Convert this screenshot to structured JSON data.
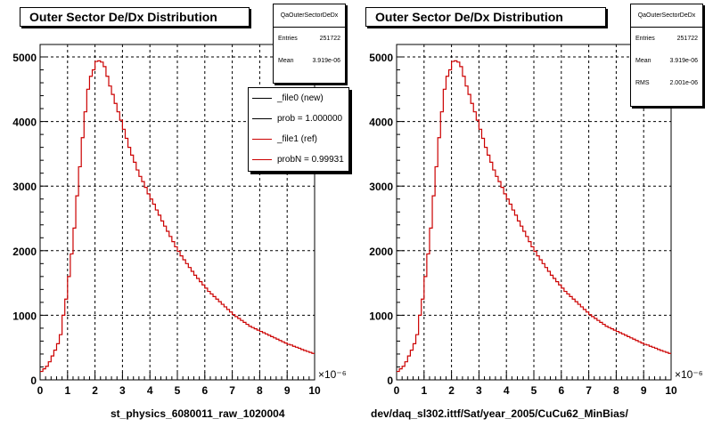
{
  "chart_data": [
    {
      "type": "histogram",
      "title": "Outer Sector De/Dx Distribution",
      "xlabel": "st_physics_6080011_raw_1020004",
      "x_exponent_label": "×10⁻⁶",
      "xlim": [
        0,
        10
      ],
      "ylim": [
        0,
        5000
      ],
      "x_ticks": [
        "0",
        "1",
        "2",
        "3",
        "4",
        "5",
        "6",
        "7",
        "8",
        "9",
        "10"
      ],
      "y_ticks": [
        "0",
        "1000",
        "2000",
        "3000",
        "4000",
        "5000"
      ],
      "grid": true,
      "stats": {
        "header": "QaOuterSectorDeDx",
        "rows": [
          {
            "label": "Entries",
            "value": "251722"
          },
          {
            "label": "Mean",
            "value": "3.919e-06"
          }
        ]
      },
      "legend": {
        "placement": "top-right",
        "entries": [
          {
            "label": "_file0 (new)",
            "color": "#000000"
          },
          {
            "label": "prob = 1.000000",
            "color": "#000000"
          },
          {
            "label": "_file1 (ref)",
            "color": "#cc0000"
          },
          {
            "label": "probN = 0.99931",
            "color": "#cc0000"
          }
        ]
      },
      "series": [
        {
          "color": "#cc0000",
          "x": [
            0.0,
            0.1,
            0.2,
            0.3,
            0.4,
            0.5,
            0.6,
            0.7,
            0.8,
            0.9,
            1.0,
            1.1,
            1.2,
            1.3,
            1.4,
            1.5,
            1.6,
            1.7,
            1.8,
            1.9,
            2.0,
            2.1,
            2.2,
            2.3,
            2.4,
            2.5,
            2.6,
            2.7,
            2.8,
            2.9,
            3.0,
            3.1,
            3.2,
            3.3,
            3.4,
            3.5,
            3.6,
            3.7,
            3.8,
            3.9,
            4.0,
            4.1,
            4.2,
            4.3,
            4.4,
            4.5,
            4.6,
            4.7,
            4.8,
            4.9,
            5.0,
            5.1,
            5.2,
            5.3,
            5.4,
            5.5,
            5.6,
            5.7,
            5.8,
            5.9,
            6.0,
            6.1,
            6.2,
            6.3,
            6.4,
            6.5,
            6.6,
            6.7,
            6.8,
            6.9,
            7.0,
            7.1,
            7.2,
            7.3,
            7.4,
            7.5,
            7.6,
            7.7,
            7.8,
            7.9,
            8.0,
            8.1,
            8.2,
            8.3,
            8.4,
            8.5,
            8.6,
            8.7,
            8.8,
            8.9,
            9.0,
            9.1,
            9.2,
            9.3,
            9.4,
            9.5,
            9.6,
            9.7,
            9.8,
            9.9
          ],
          "values": [
            130,
            170,
            210,
            280,
            370,
            460,
            560,
            700,
            1000,
            1250,
            1600,
            1950,
            2350,
            2850,
            3300,
            3750,
            4150,
            4500,
            4700,
            4800,
            4930,
            4940,
            4920,
            4850,
            4700,
            4550,
            4420,
            4280,
            4150,
            4020,
            3880,
            3740,
            3600,
            3480,
            3370,
            3250,
            3150,
            3070,
            2980,
            2880,
            2800,
            2720,
            2630,
            2550,
            2460,
            2380,
            2300,
            2220,
            2140,
            2060,
            1990,
            1920,
            1860,
            1800,
            1740,
            1680,
            1620,
            1570,
            1520,
            1470,
            1420,
            1370,
            1330,
            1290,
            1250,
            1210,
            1170,
            1130,
            1090,
            1050,
            1010,
            980,
            950,
            920,
            890,
            860,
            830,
            810,
            790,
            770,
            750,
            730,
            710,
            690,
            670,
            650,
            630,
            610,
            590,
            570,
            550,
            540,
            520,
            505,
            490,
            470,
            455,
            440,
            425,
            410
          ]
        }
      ]
    },
    {
      "type": "histogram",
      "title": "Outer Sector De/Dx Distribution",
      "xlabel": "dev/daq_sl302.ittf/Sat/year_2005/CuCu62_MinBias/",
      "x_exponent_label": "×10⁻⁶",
      "xlim": [
        0,
        10
      ],
      "ylim": [
        0,
        5000
      ],
      "x_ticks": [
        "0",
        "1",
        "2",
        "3",
        "4",
        "5",
        "6",
        "7",
        "8",
        "9",
        "10"
      ],
      "y_ticks": [
        "0",
        "1000",
        "2000",
        "3000",
        "4000",
        "5000"
      ],
      "grid": true,
      "stats": {
        "header": "QaOuterSectorDeDx",
        "rows": [
          {
            "label": "Entries",
            "value": "251722"
          },
          {
            "label": "Mean",
            "value": "3.919e-06"
          },
          {
            "label": "RMS",
            "value": "2.001e-06"
          }
        ]
      },
      "series": [
        {
          "color": "#cc0000",
          "x": [
            0.0,
            0.1,
            0.2,
            0.3,
            0.4,
            0.5,
            0.6,
            0.7,
            0.8,
            0.9,
            1.0,
            1.1,
            1.2,
            1.3,
            1.4,
            1.5,
            1.6,
            1.7,
            1.8,
            1.9,
            2.0,
            2.1,
            2.2,
            2.3,
            2.4,
            2.5,
            2.6,
            2.7,
            2.8,
            2.9,
            3.0,
            3.1,
            3.2,
            3.3,
            3.4,
            3.5,
            3.6,
            3.7,
            3.8,
            3.9,
            4.0,
            4.1,
            4.2,
            4.3,
            4.4,
            4.5,
            4.6,
            4.7,
            4.8,
            4.9,
            5.0,
            5.1,
            5.2,
            5.3,
            5.4,
            5.5,
            5.6,
            5.7,
            5.8,
            5.9,
            6.0,
            6.1,
            6.2,
            6.3,
            6.4,
            6.5,
            6.6,
            6.7,
            6.8,
            6.9,
            7.0,
            7.1,
            7.2,
            7.3,
            7.4,
            7.5,
            7.6,
            7.7,
            7.8,
            7.9,
            8.0,
            8.1,
            8.2,
            8.3,
            8.4,
            8.5,
            8.6,
            8.7,
            8.8,
            8.9,
            9.0,
            9.1,
            9.2,
            9.3,
            9.4,
            9.5,
            9.6,
            9.7,
            9.8,
            9.9
          ],
          "values": [
            130,
            170,
            210,
            280,
            370,
            460,
            560,
            700,
            1000,
            1250,
            1600,
            1950,
            2350,
            2850,
            3300,
            3750,
            4150,
            4500,
            4700,
            4800,
            4930,
            4940,
            4920,
            4850,
            4700,
            4550,
            4420,
            4280,
            4150,
            4020,
            3880,
            3740,
            3600,
            3480,
            3370,
            3250,
            3150,
            3070,
            2980,
            2880,
            2800,
            2720,
            2630,
            2550,
            2460,
            2380,
            2300,
            2220,
            2140,
            2060,
            1990,
            1920,
            1860,
            1800,
            1740,
            1680,
            1620,
            1570,
            1520,
            1470,
            1420,
            1370,
            1330,
            1290,
            1250,
            1210,
            1170,
            1130,
            1090,
            1050,
            1010,
            980,
            950,
            920,
            890,
            860,
            830,
            810,
            790,
            770,
            750,
            730,
            710,
            690,
            670,
            650,
            630,
            610,
            590,
            570,
            550,
            540,
            520,
            505,
            490,
            470,
            455,
            440,
            425,
            410
          ]
        }
      ]
    }
  ]
}
